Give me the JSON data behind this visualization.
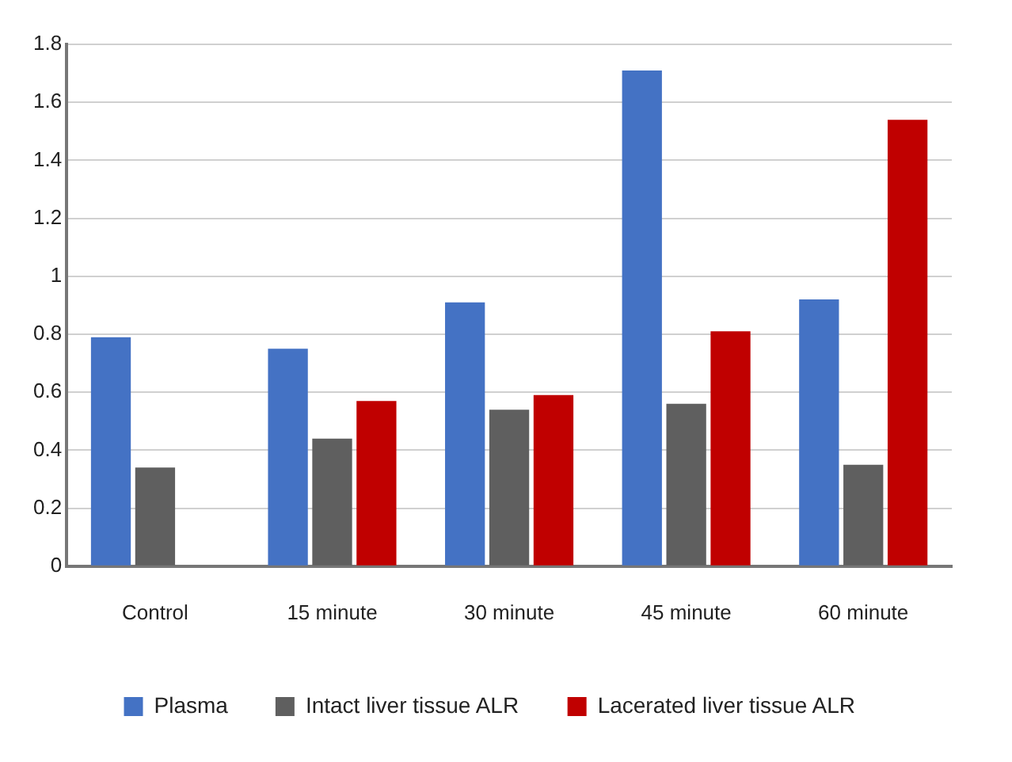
{
  "chart_data": {
    "type": "bar",
    "categories": [
      "Control",
      "15 minute",
      "30 minute",
      "45 minute",
      "60 minute"
    ],
    "series": [
      {
        "name": "Plasma",
        "color": "#4472c4",
        "values": [
          0.79,
          0.75,
          0.91,
          1.71,
          0.92
        ]
      },
      {
        "name": "Intact liver tissue ALR",
        "color": "#5f5f5f",
        "values": [
          0.34,
          0.44,
          0.54,
          0.56,
          0.35
        ]
      },
      {
        "name": "Lacerated liver tissue ALR",
        "color": "#c00000",
        "values": [
          null,
          0.57,
          0.59,
          0.81,
          1.54
        ]
      }
    ],
    "ylim": [
      0,
      1.8
    ],
    "yticks": [
      0,
      0.2,
      0.4,
      0.6,
      0.8,
      1,
      1.2,
      1.4,
      1.6,
      1.8
    ],
    "grid": "y",
    "legend": "bottom"
  }
}
